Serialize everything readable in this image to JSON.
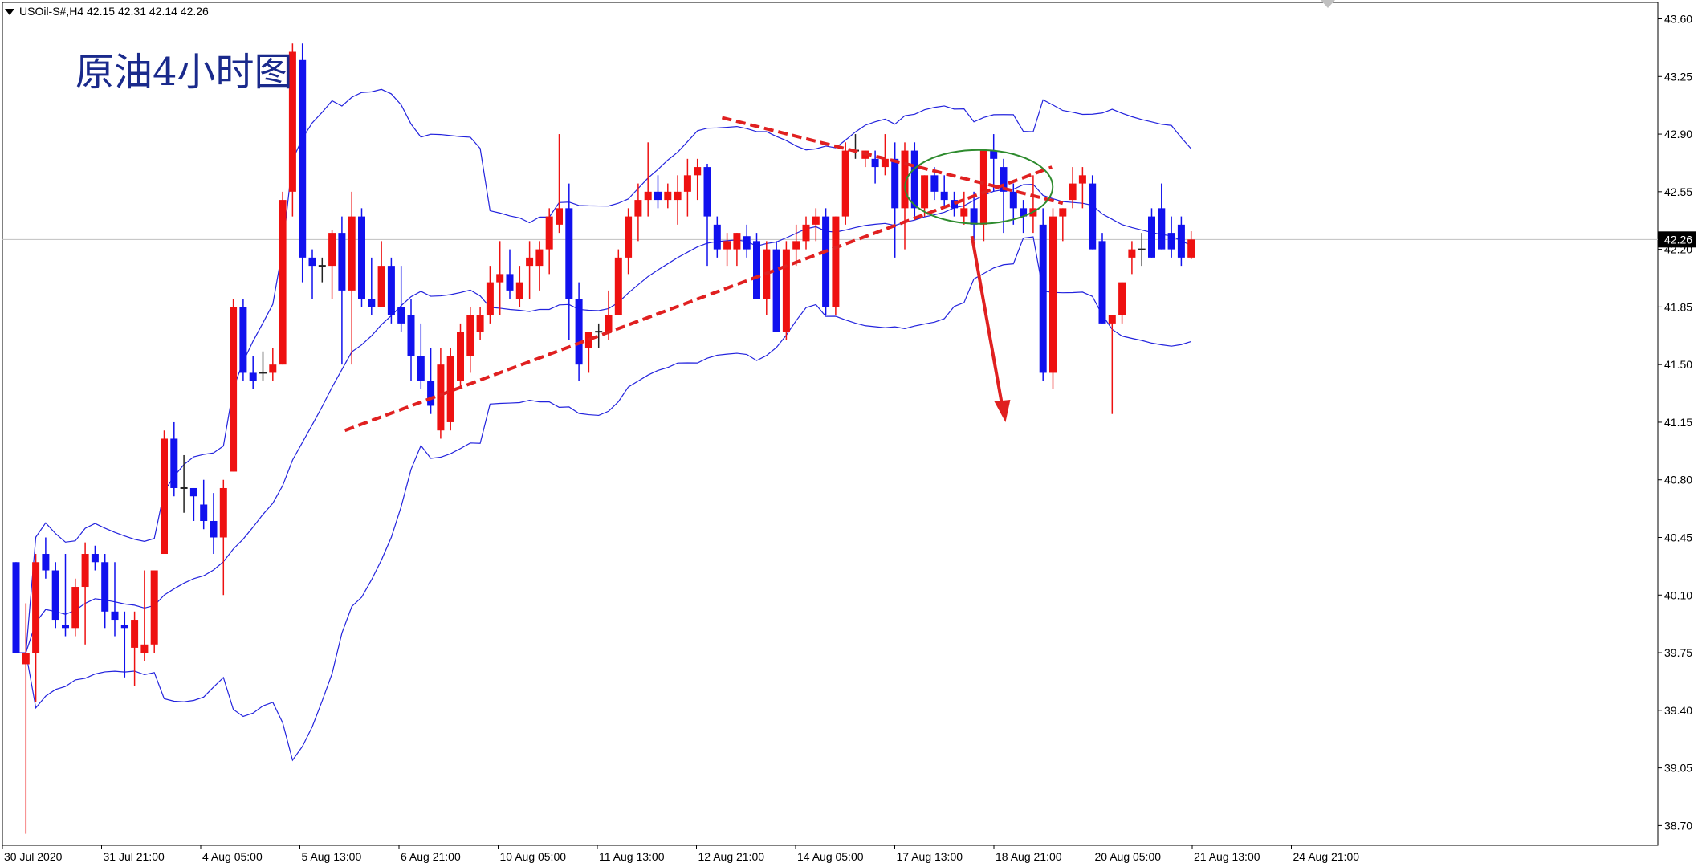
{
  "header": {
    "symbol_info": "USOil-S#,H4  42.15 42.31 42.14 42.26"
  },
  "annotation_title": "原油4小时图",
  "colors": {
    "bull": "#ee1111",
    "bear": "#1111ee",
    "bands": "#2323dd",
    "trend": "#e02020",
    "circle": "#2e8b2e",
    "grid": "#000000"
  },
  "chart_data": {
    "type": "candlestick",
    "yticks": [
      "43.60",
      "43.25",
      "42.90",
      "42.55",
      "42.20",
      "41.85",
      "41.50",
      "41.15",
      "40.80",
      "40.45",
      "40.10",
      "39.75",
      "39.40",
      "39.05",
      "38.70"
    ],
    "ylim": [
      38.58,
      43.7
    ],
    "xticks": [
      "30 Jul 2020",
      "31 Jul 21:00",
      "4 Aug 05:00",
      "5 Aug 13:00",
      "6 Aug 21:00",
      "10 Aug 05:00",
      "11 Aug 13:00",
      "12 Aug 21:00",
      "14 Aug 05:00",
      "17 Aug 13:00",
      "18 Aug 21:00",
      "20 Aug 05:00",
      "21 Aug 13:00",
      "24 Aug 21:00"
    ],
    "last_price": "42.26",
    "candles": [
      [
        40.3,
        40.3,
        39.75,
        39.75
      ],
      [
        39.68,
        40.05,
        38.65,
        39.75
      ],
      [
        39.75,
        40.35,
        39.45,
        40.3
      ],
      [
        40.35,
        40.45,
        40.2,
        40.25
      ],
      [
        40.25,
        40.3,
        39.9,
        39.95
      ],
      [
        39.92,
        40.35,
        39.85,
        39.9
      ],
      [
        39.9,
        40.2,
        39.85,
        40.15
      ],
      [
        40.15,
        40.42,
        39.8,
        40.35
      ],
      [
        40.35,
        40.4,
        40.25,
        40.3
      ],
      [
        40.3,
        40.35,
        39.9,
        40.0
      ],
      [
        40.0,
        40.3,
        39.85,
        39.95
      ],
      [
        39.92,
        40.0,
        39.6,
        39.9
      ],
      [
        39.78,
        40.0,
        39.55,
        39.95
      ],
      [
        39.75,
        40.25,
        39.7,
        39.8
      ],
      [
        39.8,
        40.25,
        39.75,
        40.25
      ],
      [
        40.35,
        41.1,
        40.35,
        41.05
      ],
      [
        41.05,
        41.15,
        40.7,
        40.75
      ],
      [
        40.75,
        40.95,
        40.6,
        40.75
      ],
      [
        40.75,
        40.75,
        40.55,
        40.7
      ],
      [
        40.65,
        40.8,
        40.5,
        40.55
      ],
      [
        40.55,
        40.72,
        40.35,
        40.45
      ],
      [
        40.45,
        40.8,
        40.1,
        40.75
      ],
      [
        40.85,
        41.9,
        40.85,
        41.85
      ],
      [
        41.85,
        41.9,
        41.4,
        41.45
      ],
      [
        41.45,
        41.55,
        41.35,
        41.4
      ],
      [
        41.45,
        41.58,
        41.4,
        41.45
      ],
      [
        41.45,
        41.6,
        41.4,
        41.5
      ],
      [
        41.5,
        42.55,
        41.5,
        42.5
      ],
      [
        42.55,
        43.45,
        42.4,
        43.4
      ],
      [
        43.35,
        43.45,
        42.0,
        42.15
      ],
      [
        42.15,
        42.2,
        41.9,
        42.1
      ],
      [
        42.1,
        42.15,
        42.0,
        42.1
      ],
      [
        42.1,
        42.32,
        41.9,
        42.3
      ],
      [
        42.3,
        42.4,
        41.5,
        41.95
      ],
      [
        41.95,
        42.55,
        41.5,
        42.4
      ],
      [
        42.4,
        42.45,
        41.85,
        41.9
      ],
      [
        41.9,
        42.15,
        41.8,
        41.85
      ],
      [
        41.85,
        42.25,
        41.85,
        42.1
      ],
      [
        42.1,
        42.15,
        41.75,
        41.8
      ],
      [
        41.85,
        42.1,
        41.7,
        41.75
      ],
      [
        41.8,
        41.9,
        41.4,
        41.55
      ],
      [
        41.55,
        41.75,
        41.35,
        41.4
      ],
      [
        41.4,
        41.6,
        41.2,
        41.25
      ],
      [
        41.1,
        41.6,
        41.05,
        41.5
      ],
      [
        41.15,
        41.6,
        41.1,
        41.55
      ],
      [
        41.4,
        41.75,
        41.35,
        41.7
      ],
      [
        41.55,
        41.85,
        41.45,
        41.8
      ],
      [
        41.7,
        41.85,
        41.65,
        41.8
      ],
      [
        41.8,
        42.1,
        41.75,
        42.0
      ],
      [
        42.0,
        42.25,
        41.8,
        42.05
      ],
      [
        42.05,
        42.2,
        41.9,
        41.95
      ],
      [
        41.9,
        42.1,
        41.85,
        42.0
      ],
      [
        42.1,
        42.25,
        41.9,
        42.15
      ],
      [
        42.1,
        42.25,
        41.95,
        42.2
      ],
      [
        42.2,
        42.45,
        42.05,
        42.4
      ],
      [
        42.35,
        42.9,
        42.3,
        42.45
      ],
      [
        42.45,
        42.6,
        41.65,
        41.9
      ],
      [
        41.9,
        42.0,
        41.4,
        41.5
      ],
      [
        41.6,
        41.7,
        41.45,
        41.7
      ],
      [
        41.7,
        41.75,
        41.6,
        41.7
      ],
      [
        41.7,
        41.95,
        41.65,
        41.8
      ],
      [
        41.8,
        42.2,
        41.8,
        42.15
      ],
      [
        42.15,
        42.45,
        42.05,
        42.4
      ],
      [
        42.4,
        42.6,
        42.25,
        42.5
      ],
      [
        42.5,
        42.85,
        42.4,
        42.55
      ],
      [
        42.55,
        42.65,
        42.45,
        42.5
      ],
      [
        42.5,
        42.6,
        42.45,
        42.55
      ],
      [
        42.5,
        42.65,
        42.35,
        42.55
      ],
      [
        42.55,
        42.75,
        42.4,
        42.65
      ],
      [
        42.65,
        42.75,
        42.5,
        42.7
      ],
      [
        42.7,
        42.72,
        42.1,
        42.4
      ],
      [
        42.35,
        42.4,
        42.15,
        42.2
      ],
      [
        42.2,
        42.3,
        42.1,
        42.25
      ],
      [
        42.2,
        42.3,
        42.1,
        42.3
      ],
      [
        42.28,
        42.35,
        42.15,
        42.2
      ],
      [
        42.25,
        42.3,
        41.9,
        41.9
      ],
      [
        41.9,
        42.25,
        41.8,
        42.2
      ],
      [
        42.2,
        42.25,
        41.7,
        41.7
      ],
      [
        41.7,
        42.25,
        41.65,
        42.2
      ],
      [
        42.2,
        42.35,
        42.1,
        42.25
      ],
      [
        42.25,
        42.4,
        42.2,
        42.35
      ],
      [
        42.35,
        42.45,
        42.25,
        42.4
      ],
      [
        42.4,
        42.45,
        41.8,
        41.85
      ],
      [
        41.85,
        42.4,
        41.8,
        42.4
      ],
      [
        42.4,
        42.85,
        42.35,
        42.8
      ],
      [
        42.8,
        42.9,
        42.75,
        42.8
      ],
      [
        42.75,
        42.8,
        42.7,
        42.8
      ],
      [
        42.75,
        42.8,
        42.6,
        42.7
      ],
      [
        42.7,
        42.9,
        42.65,
        42.75
      ],
      [
        42.75,
        42.85,
        42.15,
        42.45
      ],
      [
        42.45,
        42.85,
        42.2,
        42.8
      ],
      [
        42.8,
        42.85,
        42.4,
        42.45
      ],
      [
        42.45,
        42.65,
        42.4,
        42.65
      ],
      [
        42.65,
        42.7,
        42.5,
        42.55
      ],
      [
        42.55,
        42.65,
        42.45,
        42.5
      ],
      [
        42.5,
        42.55,
        42.4,
        42.45
      ],
      [
        42.4,
        42.55,
        42.35,
        42.45
      ],
      [
        42.45,
        42.55,
        42.25,
        42.35
      ],
      [
        42.35,
        42.75,
        42.25,
        42.8
      ],
      [
        42.8,
        42.9,
        42.55,
        42.75
      ],
      [
        42.7,
        42.75,
        42.3,
        42.55
      ],
      [
        42.55,
        42.6,
        42.35,
        42.45
      ],
      [
        42.45,
        42.5,
        42.3,
        42.4
      ],
      [
        42.4,
        42.65,
        42.3,
        42.45
      ],
      [
        42.35,
        42.45,
        41.4,
        41.45
      ],
      [
        41.45,
        42.45,
        41.35,
        42.4
      ],
      [
        42.4,
        42.45,
        42.25,
        42.45
      ],
      [
        42.5,
        42.7,
        42.45,
        42.6
      ],
      [
        42.6,
        42.7,
        42.45,
        42.65
      ],
      [
        42.6,
        42.65,
        42.2,
        42.2
      ],
      [
        42.25,
        42.3,
        41.75,
        41.75
      ],
      [
        41.75,
        41.8,
        41.2,
        41.8
      ],
      [
        41.8,
        42.0,
        41.75,
        42.0
      ],
      [
        42.15,
        42.25,
        42.05,
        42.2
      ],
      [
        42.2,
        42.3,
        42.1,
        42.2
      ],
      [
        42.4,
        42.45,
        42.15,
        42.15
      ],
      [
        42.45,
        42.6,
        42.2,
        42.2
      ],
      [
        42.3,
        42.4,
        42.15,
        42.2
      ],
      [
        42.35,
        42.4,
        42.1,
        42.15
      ],
      [
        42.15,
        42.31,
        42.14,
        42.26
      ]
    ]
  }
}
